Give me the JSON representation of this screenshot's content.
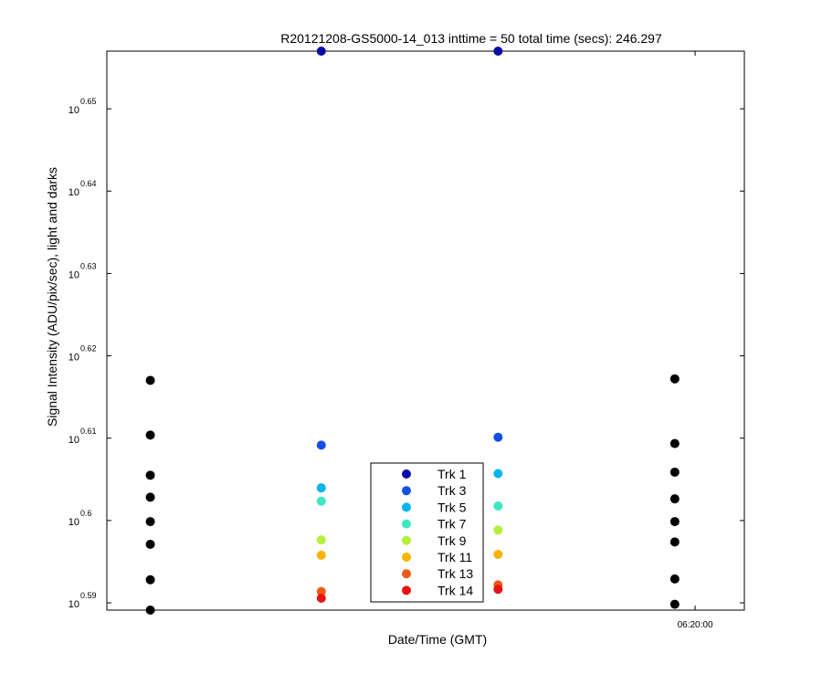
{
  "chart_data": {
    "type": "scatter",
    "title": "R20121208-GS5000-14_013 inttime = 50 total time (secs): 246.297",
    "xlabel": "Date/Time (GMT)",
    "ylabel": "Signal Intensity (ADU/pix/sec), light and darks",
    "y_scale": "log",
    "ylim": [
      3.8826,
      4.5394
    ],
    "y_ticks": [
      {
        "base": "10",
        "exp": "0.59",
        "value": 3.8905
      },
      {
        "base": "10",
        "exp": "0.6",
        "value": 3.9811
      },
      {
        "base": "10",
        "exp": "0.61",
        "value": 4.0738
      },
      {
        "base": "10",
        "exp": "0.62",
        "value": 4.1687
      },
      {
        "base": "10",
        "exp": "0.63",
        "value": 4.2658
      },
      {
        "base": "10",
        "exp": "0.64",
        "value": 4.3652
      },
      {
        "base": "10",
        "exp": "0.65",
        "value": 4.4668
      }
    ],
    "xlim": [
      "06:16:37",
      "06:20:17"
    ],
    "x_ticks": [
      {
        "label": "06:20:00",
        "value": "06:20:00"
      }
    ],
    "grid": false,
    "legend_position": "bottom-center",
    "dark_color": "#000000",
    "series": [
      {
        "name": "Trk 1",
        "color": "#0a0aa8",
        "points": [
          {
            "x": "06:17:51",
            "y": 4.5394
          },
          {
            "x": "06:18:52",
            "y": 4.5394
          }
        ]
      },
      {
        "name": "Trk 3",
        "color": "#1450e6",
        "points": [
          {
            "x": "06:17:51",
            "y": 4.0659
          },
          {
            "x": "06:18:52",
            "y": 4.0749
          }
        ]
      },
      {
        "name": "Trk 5",
        "color": "#00b4ee",
        "points": [
          {
            "x": "06:17:51",
            "y": 4.0176
          },
          {
            "x": "06:18:52",
            "y": 4.0337
          }
        ]
      },
      {
        "name": "Trk 7",
        "color": "#3ce8c0",
        "points": [
          {
            "x": "06:17:51",
            "y": 4.0027
          },
          {
            "x": "06:18:52",
            "y": 3.9973
          }
        ]
      },
      {
        "name": "Trk 9",
        "color": "#b4f03c",
        "points": [
          {
            "x": "06:17:51",
            "y": 3.9596
          },
          {
            "x": "06:18:52",
            "y": 3.9704
          }
        ]
      },
      {
        "name": "Trk 11",
        "color": "#f8b400",
        "points": [
          {
            "x": "06:17:51",
            "y": 3.9427
          },
          {
            "x": "06:18:52",
            "y": 3.9436
          }
        ]
      },
      {
        "name": "Trk 13",
        "color": "#f05a14",
        "points": [
          {
            "x": "06:17:51",
            "y": 3.9028
          },
          {
            "x": "06:18:52",
            "y": 3.9101
          }
        ]
      },
      {
        "name": "Trk 14",
        "color": "#e61414",
        "points": [
          {
            "x": "06:17:51",
            "y": 3.8955
          },
          {
            "x": "06:18:52",
            "y": 3.9052
          }
        ]
      }
    ],
    "darks": [
      {
        "x": "06:16:52",
        "y": [
          4.1402,
          4.0773,
          4.0318,
          4.0071,
          3.9799,
          3.9547,
          3.9157,
          3.8826
        ]
      },
      {
        "x": "06:19:53",
        "y": [
          4.1419,
          4.0677,
          4.0353,
          4.0053,
          3.9799,
          3.9573,
          3.9166,
          3.8889
        ]
      }
    ]
  }
}
